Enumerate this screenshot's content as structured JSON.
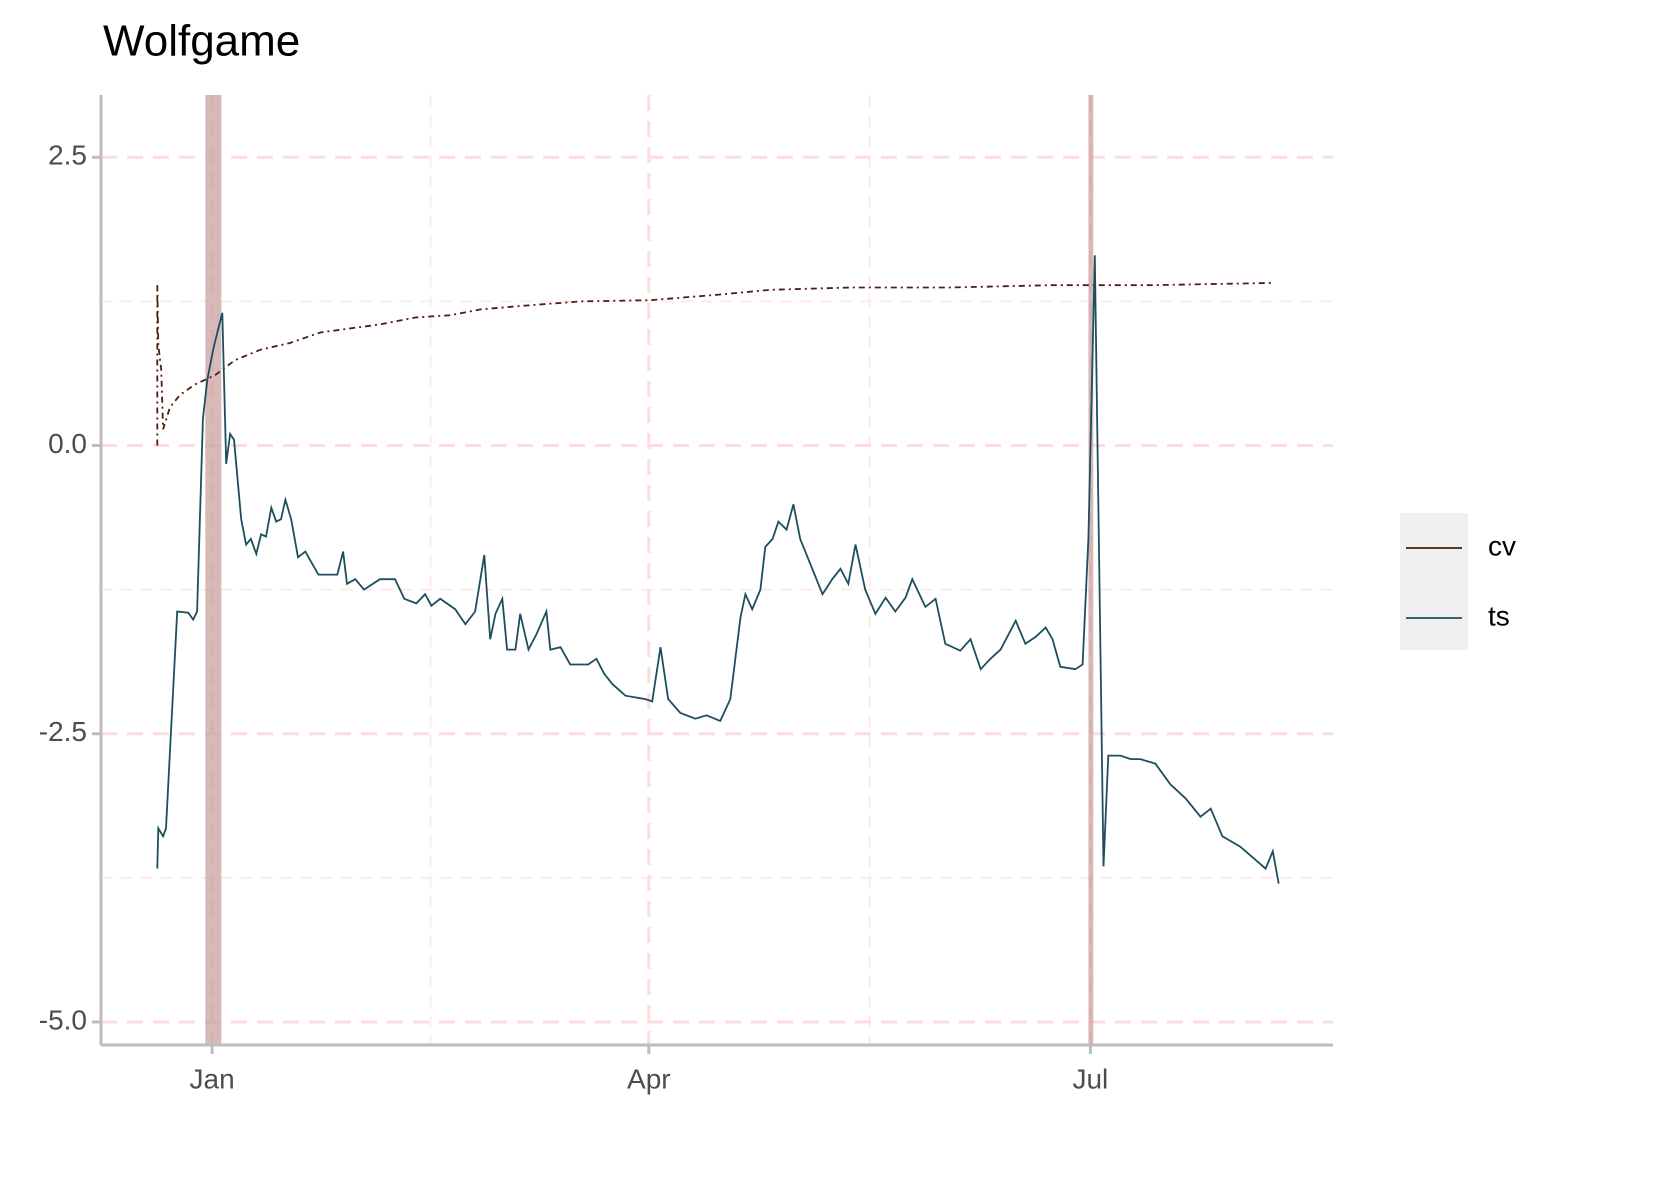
{
  "chart_data": {
    "type": "line",
    "title": "Wolfgame",
    "xlim": [
      -22.9,
      231.0
    ],
    "xticks": [
      {
        "value": 0,
        "label": "Jan"
      },
      {
        "value": 90,
        "label": "Apr"
      },
      {
        "value": 181,
        "label": "Jul"
      }
    ],
    "ylim": [
      -5.2,
      3.04
    ],
    "yticks": [
      {
        "value": -5,
        "label": "-5.0"
      },
      {
        "value": -2.5,
        "label": "-2.5"
      },
      {
        "value": 0,
        "label": "0.0"
      },
      {
        "value": 2.5,
        "label": "2.5"
      }
    ],
    "grid": true,
    "legend": "right",
    "highlights": [
      {
        "xmin": -1.4,
        "xmax": 1.9,
        "color": "#c9a3a0"
      },
      {
        "xmin": 180.6,
        "xmax": 181.6,
        "color": "#c9a3a0"
      }
    ],
    "series": [
      {
        "name": "cv",
        "color": "#4d1d0e",
        "dash": "dotdash",
        "x": [
          -11.3,
          -11.3,
          -11.1,
          -10.5,
          -10.1,
          -8.7,
          -6.6,
          -3.5,
          0.6,
          4.7,
          9.9,
          16.1,
          22.3,
          34.6,
          41.9,
          49.1,
          55.3,
          63.5,
          75.9,
          90.3,
          104.7,
          115.1,
          131.5,
          152.2,
          172.8,
          193.4,
          218.8
        ],
        "values": [
          0.0,
          1.39,
          0.87,
          0.66,
          0.14,
          0.33,
          0.44,
          0.53,
          0.61,
          0.74,
          0.83,
          0.89,
          0.98,
          1.05,
          1.11,
          1.13,
          1.18,
          1.21,
          1.25,
          1.26,
          1.31,
          1.35,
          1.37,
          1.37,
          1.39,
          1.39,
          1.41
        ]
      },
      {
        "name": "ts",
        "color": "#1c4f5e",
        "dash": "solid",
        "x": [
          -11.3,
          -11.1,
          -10.1,
          -9.5,
          -7.2,
          -4.9,
          -3.9,
          -3.1,
          -1.9,
          -1.0,
          0.2,
          1.2,
          2.1,
          2.9,
          3.7,
          4.5,
          6.0,
          7.0,
          8.0,
          9.1,
          10.1,
          11.1,
          12.2,
          13.2,
          14.2,
          15.1,
          16.3,
          17.7,
          19.2,
          21.9,
          25.8,
          27.0,
          27.8,
          29.5,
          31.3,
          34.6,
          37.7,
          39.6,
          42.1,
          43.9,
          45.2,
          47.0,
          50.1,
          52.2,
          54.2,
          56.1,
          57.3,
          58.4,
          59.8,
          60.8,
          62.5,
          63.5,
          65.2,
          66.8,
          68.9,
          69.7,
          71.8,
          73.8,
          77.5,
          79.2,
          80.8,
          82.5,
          85.2,
          89.3,
          90.7,
          92.4,
          94.0,
          96.5,
          99.6,
          101.9,
          104.7,
          106.8,
          108.9,
          109.9,
          111.3,
          113.0,
          114.0,
          115.5,
          116.7,
          118.4,
          119.8,
          121.2,
          123.3,
          125.8,
          127.8,
          129.5,
          131.1,
          132.6,
          134.6,
          136.7,
          138.8,
          140.8,
          142.9,
          144.3,
          147.0,
          149.1,
          151.1,
          154.2,
          156.3,
          158.4,
          160.4,
          162.5,
          165.6,
          167.6,
          169.7,
          171.8,
          173.2,
          174.8,
          177.9,
          179.4,
          180.6,
          181.9,
          183.7,
          184.7,
          187.2,
          189.3,
          191.3,
          194.4,
          197.5,
          200.6,
          203.7,
          205.8,
          208.2,
          211.9,
          217.1,
          218.6,
          219.8
        ],
        "values": [
          -3.67,
          -3.32,
          -3.39,
          -3.32,
          -1.44,
          -1.45,
          -1.51,
          -1.44,
          0.23,
          0.57,
          0.83,
          1.0,
          1.15,
          -0.16,
          0.1,
          0.05,
          -0.64,
          -0.86,
          -0.81,
          -0.94,
          -0.77,
          -0.79,
          -0.54,
          -0.66,
          -0.64,
          -0.47,
          -0.64,
          -0.97,
          -0.92,
          -1.12,
          -1.12,
          -0.92,
          -1.2,
          -1.16,
          -1.25,
          -1.16,
          -1.16,
          -1.33,
          -1.37,
          -1.29,
          -1.39,
          -1.33,
          -1.42,
          -1.55,
          -1.44,
          -0.95,
          -1.68,
          -1.46,
          -1.33,
          -1.77,
          -1.77,
          -1.46,
          -1.77,
          -1.64,
          -1.44,
          -1.77,
          -1.75,
          -1.9,
          -1.9,
          -1.85,
          -1.98,
          -2.07,
          -2.17,
          -2.2,
          -2.22,
          -1.75,
          -2.2,
          -2.32,
          -2.37,
          -2.34,
          -2.39,
          -2.2,
          -1.49,
          -1.29,
          -1.42,
          -1.25,
          -0.88,
          -0.81,
          -0.66,
          -0.73,
          -0.51,
          -0.81,
          -1.03,
          -1.29,
          -1.16,
          -1.07,
          -1.2,
          -0.86,
          -1.25,
          -1.46,
          -1.32,
          -1.44,
          -1.32,
          -1.16,
          -1.4,
          -1.33,
          -1.72,
          -1.78,
          -1.68,
          -1.94,
          -1.85,
          -1.77,
          -1.52,
          -1.72,
          -1.66,
          -1.58,
          -1.68,
          -1.92,
          -1.94,
          -1.9,
          -0.81,
          1.65,
          -3.65,
          -2.69,
          -2.69,
          -2.72,
          -2.72,
          -2.76,
          -2.94,
          -3.06,
          -3.22,
          -3.15,
          -3.39,
          -3.48,
          -3.67,
          -3.52,
          -3.8
        ]
      }
    ]
  }
}
